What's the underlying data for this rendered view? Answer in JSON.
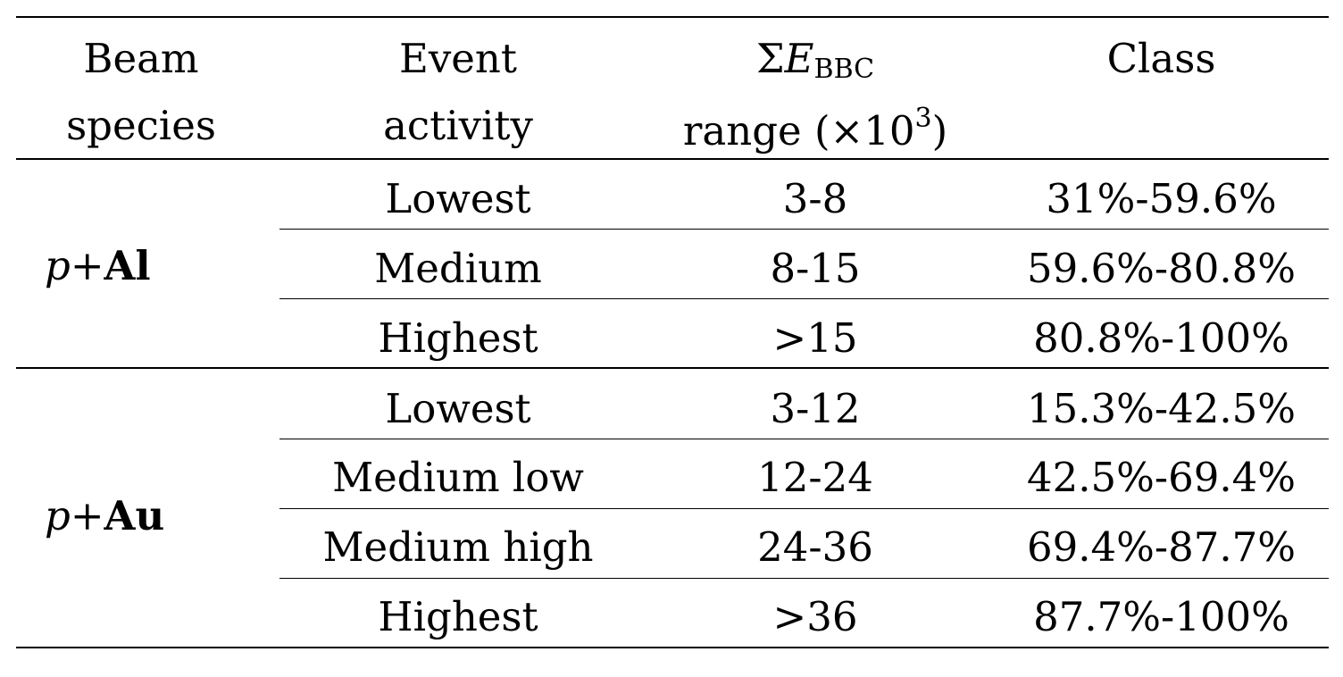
{
  "headers": {
    "beam": [
      "Beam",
      "species"
    ],
    "event": [
      "Event",
      "activity"
    ],
    "energy": {
      "sigma": "Σ",
      "E": "E",
      "sub": "BBC",
      "line2_pre": "range (×10",
      "sup": "3",
      "line2_post": ")"
    },
    "class_label": "Class"
  },
  "groups": [
    {
      "projectile": "p",
      "plus": "+",
      "target": "Al",
      "rows": [
        {
          "activity": "Lowest",
          "range": "3-8",
          "class": "31%-59.6%"
        },
        {
          "activity": "Medium",
          "range": "8-15",
          "class": "59.6%-80.8%"
        },
        {
          "activity": "Highest",
          "range": ">15",
          "class": "80.8%-100%"
        }
      ]
    },
    {
      "projectile": "p",
      "plus": "+",
      "target": "Au",
      "rows": [
        {
          "activity": "Lowest",
          "range": "3-12",
          "class": "15.3%-42.5%"
        },
        {
          "activity": "Medium low",
          "range": "12-24",
          "class": "42.5%-69.4%"
        },
        {
          "activity": "Medium high",
          "range": "24-36",
          "class": "69.4%-87.7%"
        },
        {
          "activity": "Highest",
          "range": ">36",
          "class": "87.7%-100%"
        }
      ]
    }
  ]
}
